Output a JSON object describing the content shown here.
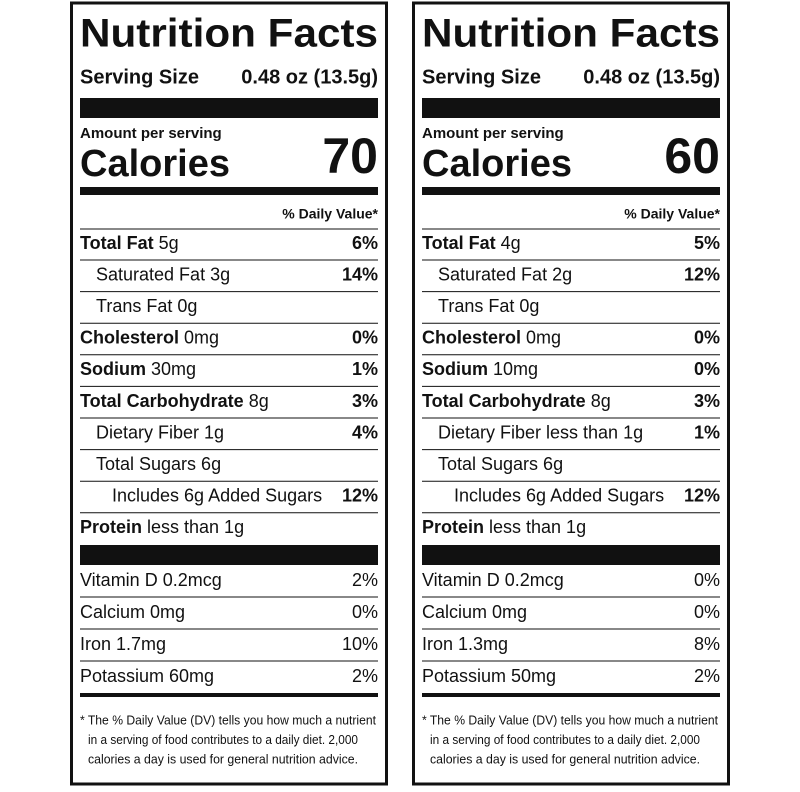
{
  "panels": [
    {
      "title": "Nutrition Facts",
      "serving_label": "Serving Size",
      "serving_size": "0.48 oz (13.5g)",
      "amount_per_serving": "Amount per serving",
      "calories_label": "Calories",
      "calories": "70",
      "daily_value_header": "% Daily Value*",
      "rows": [
        {
          "name": "Total Fat",
          "amount": "5g",
          "dv": "6%"
        },
        {
          "name": "Saturated Fat 3g",
          "dv": "14%"
        },
        {
          "name": "Trans Fat 0g"
        },
        {
          "name": "Cholesterol",
          "amount": "0mg",
          "dv": "0%"
        },
        {
          "name": "Sodium",
          "amount": "30mg",
          "dv": "1%"
        },
        {
          "name": "Total Carbohydrate",
          "amount": "8g",
          "dv": "3%"
        },
        {
          "name": "Dietary Fiber 1g",
          "dv": "4%"
        },
        {
          "name": "Total Sugars 6g"
        },
        {
          "name": "Includes 6g Added Sugars",
          "dv": "12%"
        },
        {
          "name": "Protein",
          "amount": "less than 1g"
        }
      ],
      "vitamins": [
        {
          "name": "Vitamin D 0.2mcg",
          "dv": "2%"
        },
        {
          "name": "Calcium 0mg",
          "dv": "0%"
        },
        {
          "name": "Iron 1.7mg",
          "dv": "10%"
        },
        {
          "name": "Potassium 60mg",
          "dv": "2%"
        }
      ],
      "footnote": [
        "* The % Daily Value (DV) tells you how much a nutrient",
        "in a serving of food contributes to a daily diet. 2,000",
        "calories a day is used for general nutrition advice."
      ]
    },
    {
      "title": "Nutrition Facts",
      "serving_label": "Serving Size",
      "serving_size": "0.48 oz (13.5g)",
      "amount_per_serving": "Amount per serving",
      "calories_label": "Calories",
      "calories": "60",
      "daily_value_header": "% Daily Value*",
      "rows": [
        {
          "name": "Total Fat",
          "amount": "4g",
          "dv": "5%"
        },
        {
          "name": "Saturated Fat 2g",
          "dv": "12%"
        },
        {
          "name": "Trans Fat 0g"
        },
        {
          "name": "Cholesterol",
          "amount": "0mg",
          "dv": "0%"
        },
        {
          "name": "Sodium",
          "amount": "10mg",
          "dv": "0%"
        },
        {
          "name": "Total Carbohydrate",
          "amount": "8g",
          "dv": "3%"
        },
        {
          "name": "Dietary Fiber less than 1g",
          "dv": "1%"
        },
        {
          "name": "Total Sugars 6g"
        },
        {
          "name": "Includes 6g Added Sugars",
          "dv": "12%"
        },
        {
          "name": "Protein",
          "amount": "less than 1g"
        }
      ],
      "vitamins": [
        {
          "name": "Vitamin D 0.2mcg",
          "dv": "0%"
        },
        {
          "name": "Calcium 0mg",
          "dv": "0%"
        },
        {
          "name": "Iron 1.3mg",
          "dv": "8%"
        },
        {
          "name": "Potassium 50mg",
          "dv": "2%"
        }
      ],
      "footnote": [
        "* The % Daily Value (DV) tells you how much a nutrient",
        "in a serving of food contributes to a daily diet. 2,000",
        "calories a day is used for general nutrition advice."
      ]
    }
  ]
}
